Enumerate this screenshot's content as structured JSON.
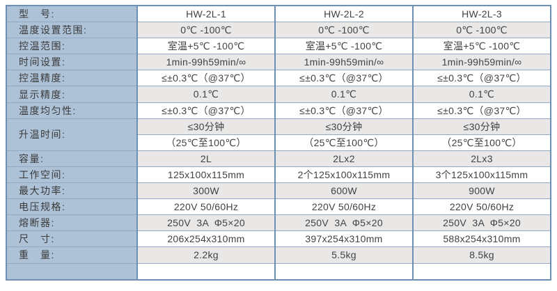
{
  "colors": {
    "page_background": "#ffffff",
    "label_column_background": "#aec2d7",
    "shaded_row_background": "#e9e8e6",
    "plain_row_background": "#ffffff",
    "border_strong": "#6d8fb4",
    "border_light": "#94a9c1",
    "text": "#3d3d3d"
  },
  "table": {
    "rows": [
      {
        "label": "型　号:",
        "values": [
          "HW-2L-1",
          "HW-2L-2",
          "HW-2L-3"
        ]
      },
      {
        "label": "温度设置范围:",
        "values": [
          "0℃ -100℃",
          "0℃ -100℃",
          "0℃ -100℃"
        ]
      },
      {
        "label": "控温范围:",
        "values": [
          "室温+5℃ -100℃",
          "室温+5℃ -100℃",
          "室温+5℃ -100℃"
        ]
      },
      {
        "label": "时间设置:",
        "values": [
          "1min-99h59min/∞",
          "1min-99h59min/∞",
          "1min-99h59min/∞"
        ]
      },
      {
        "label": "控温精度:",
        "values": [
          "≤±0.3℃（@37℃）",
          "≤±0.3℃（@37℃）",
          "≤±0.3℃（@37℃）"
        ]
      },
      {
        "label": "显示精度:",
        "values": [
          "0.1℃",
          "0.1℃",
          "0.1℃"
        ]
      },
      {
        "label": "温度均匀性:",
        "values": [
          "≤±0.3℃（@37℃）",
          "≤±0.3℃（@37℃）",
          "≤±0.3℃（@37℃）"
        ]
      },
      {
        "label": "升温时间:",
        "values": [
          "≤30分钟",
          "≤30分钟",
          "≤30分钟"
        ]
      },
      {
        "label": "",
        "values": [
          "（25℃至100℃）",
          "（25℃至100℃）",
          "（25℃至100℃）"
        ]
      },
      {
        "label": "容量:",
        "values": [
          "2L",
          "2Lx2",
          "2Lx3"
        ]
      },
      {
        "label": "工作空间:",
        "values": [
          "125x100x115mm",
          "2个125x100x115mm",
          "3个125x100x115mm"
        ]
      },
      {
        "label": "最大功率:",
        "values": [
          "300W",
          "600W",
          "900W"
        ]
      },
      {
        "label": "电压规格:",
        "values": [
          "220V 50/60Hz",
          "220V 50/60Hz",
          "220V 50/60Hz"
        ]
      },
      {
        "label": "熔断器:",
        "values": [
          "250V  3A  Φ5×20",
          "250V  3A  Φ5×20",
          "250V  3A  Φ5×20"
        ]
      },
      {
        "label": "尺　寸:",
        "values": [
          "206x254x310mm",
          "397x254x310mm",
          "588x254x310mm"
        ]
      },
      {
        "label": "重　量:",
        "values": [
          "2.2kg",
          "5.5kg",
          "8.5kg"
        ]
      },
      {
        "label": "",
        "values": [
          "",
          "",
          ""
        ]
      }
    ]
  }
}
